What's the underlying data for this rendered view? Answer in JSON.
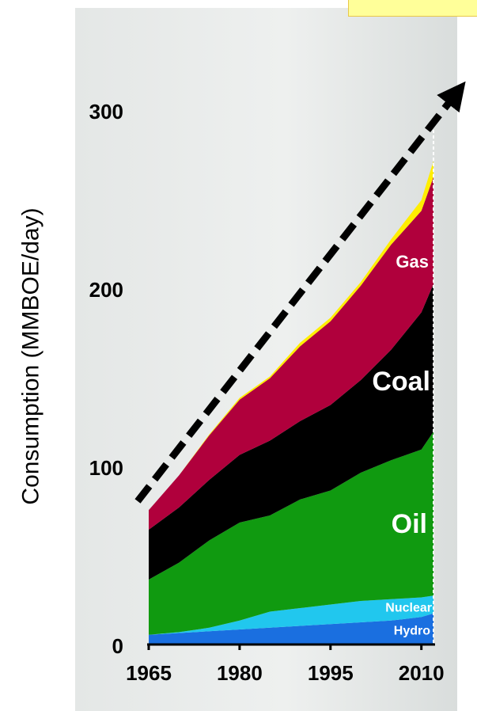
{
  "chart_data": {
    "type": "area",
    "stacked": true,
    "ylabel": "Consumption (MMBOE/day)",
    "xlabel": "",
    "title": "",
    "xlim": [
      1965,
      2012
    ],
    "ylim": [
      0,
      300
    ],
    "xticks": [
      1965,
      1980,
      1995,
      2010
    ],
    "yticks": [
      0,
      100,
      200,
      300
    ],
    "x": [
      1965,
      1970,
      1975,
      1980,
      1985,
      1990,
      1995,
      2000,
      2005,
      2010,
      2012
    ],
    "series": [
      {
        "name": "Hydro",
        "color": "#1a6fe0",
        "values": [
          5,
          6,
          7,
          8,
          9,
          10,
          11,
          12,
          13,
          15,
          17
        ]
      },
      {
        "name": "Nuclear",
        "color": "#21c7ee",
        "values": [
          0,
          0.5,
          2,
          5,
          9,
          10,
          11,
          12,
          12,
          11,
          10
        ]
      },
      {
        "name": "Oil",
        "color": "#109a10",
        "values": [
          31,
          39,
          49,
          55,
          54,
          61,
          64,
          72,
          78,
          83,
          92
        ]
      },
      {
        "name": "Coal",
        "color": "#000000",
        "values": [
          28,
          31,
          34,
          38,
          42,
          44,
          48,
          52,
          62,
          77,
          83
        ]
      },
      {
        "name": "Gas",
        "color": "#b0003c",
        "values": [
          11,
          18,
          25,
          31,
          35,
          42,
          47,
          53,
          59,
          57,
          60
        ]
      },
      {
        "name": "",
        "color": "#ffee00",
        "values": [
          0,
          0,
          0.5,
          1,
          1,
          2,
          2,
          2,
          3,
          6,
          9
        ]
      }
    ],
    "trend_arrow": {
      "from": [
        1965,
        80
      ],
      "to": [
        2016,
        310
      ],
      "style": "dashed"
    }
  }
}
